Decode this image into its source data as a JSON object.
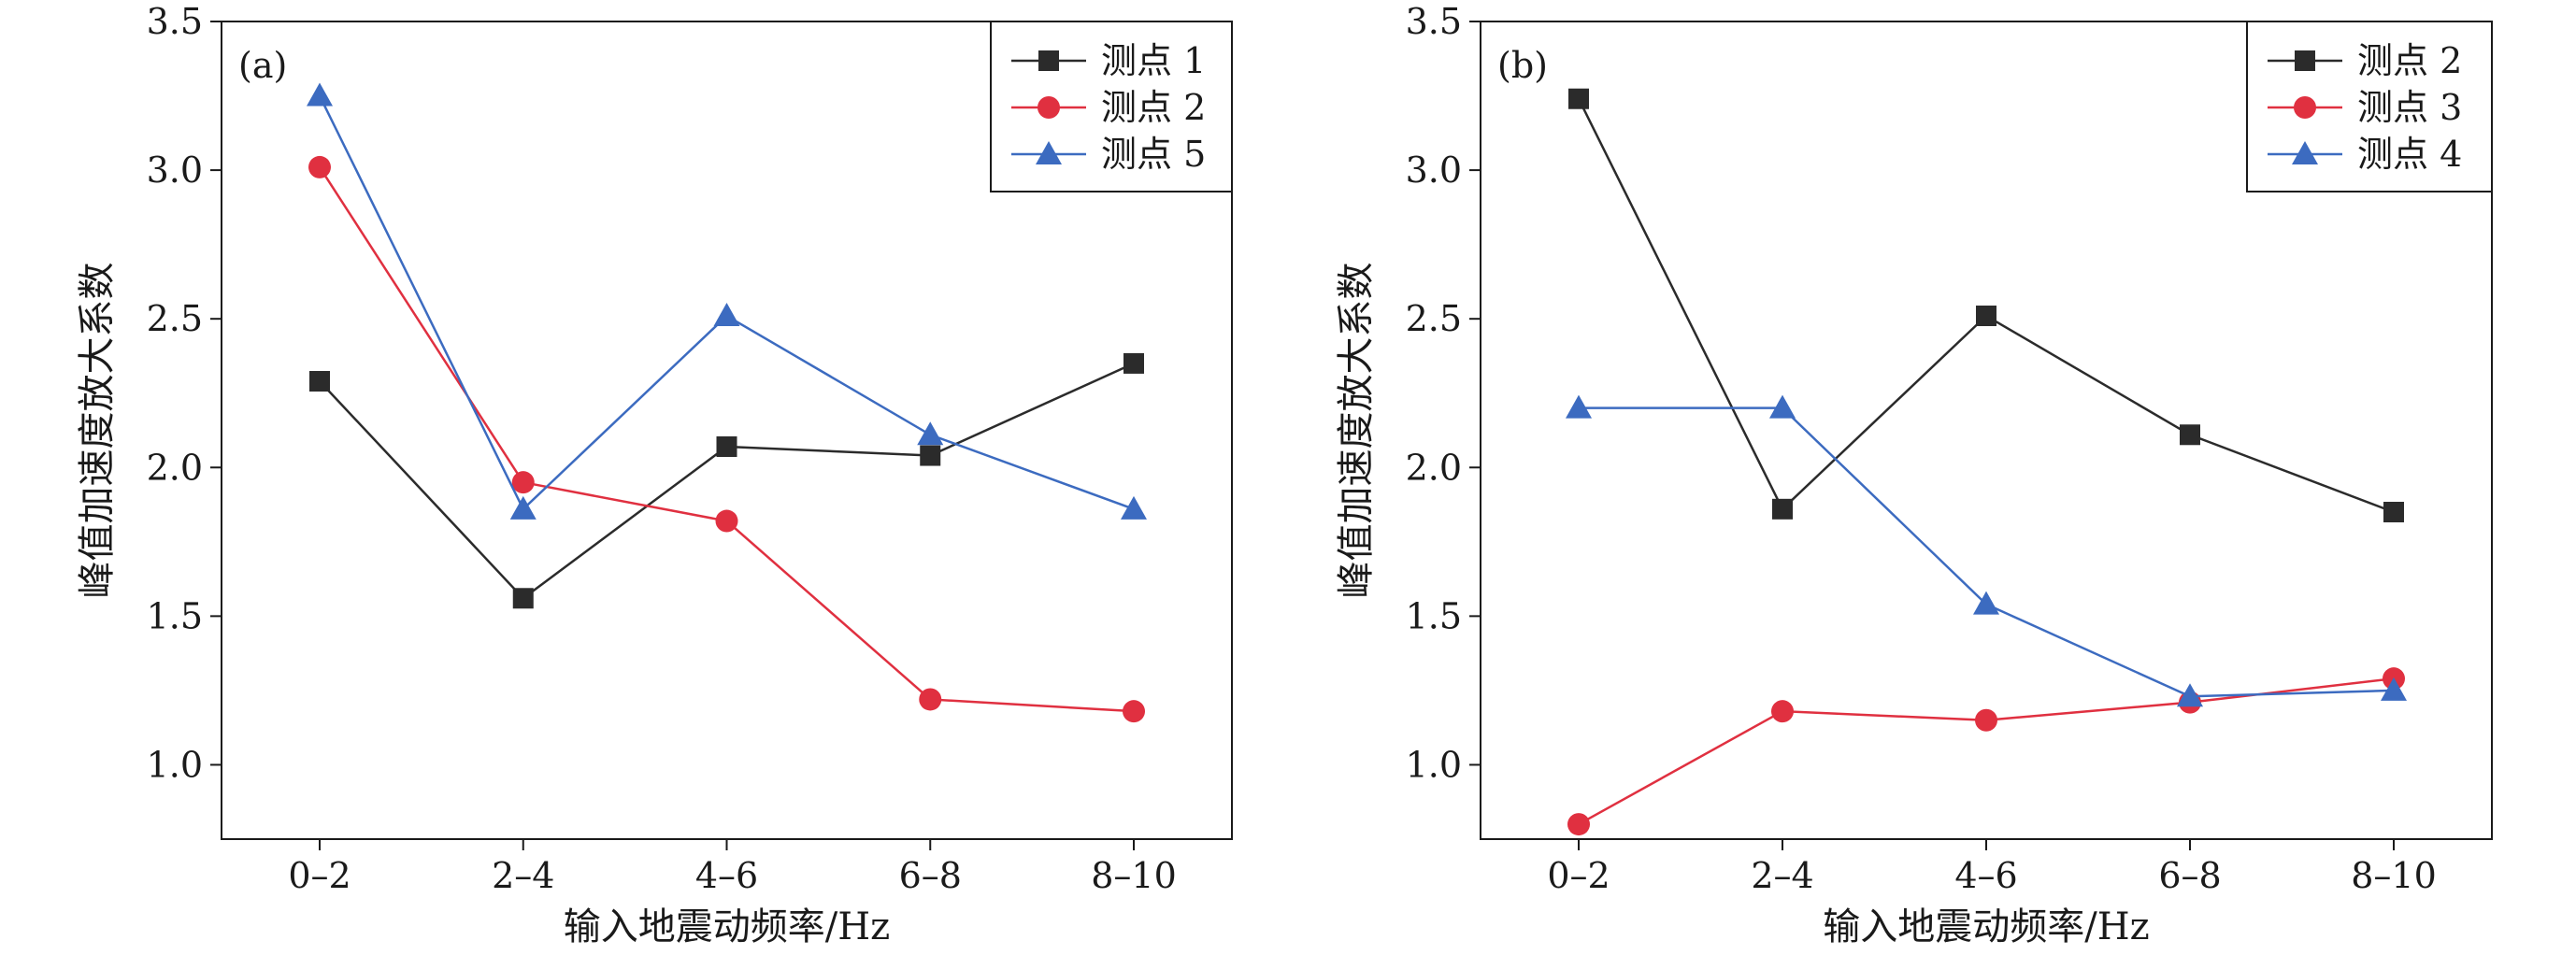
{
  "chart_data": [
    {
      "type": "line",
      "panel_label": "(a)",
      "categories": [
        "0–2",
        "2–4",
        "4–6",
        "6–8",
        "8–10"
      ],
      "xlabel": "输入地震动频率/Hz",
      "ylabel": "峰值加速度放大系数",
      "ylim": [
        0.75,
        3.5
      ],
      "yticks": [
        "1.0",
        "1.5",
        "2.0",
        "2.5",
        "3.0",
        "3.5"
      ],
      "legend_position": "top-right",
      "grid": false,
      "series": [
        {
          "name": "测点 1",
          "marker": "square",
          "color": "#2b2b2b",
          "values": [
            2.29,
            1.56,
            2.07,
            2.04,
            2.35
          ]
        },
        {
          "name": "测点 2",
          "marker": "circle",
          "color": "#e03040",
          "values": [
            3.01,
            1.95,
            1.82,
            1.22,
            1.18
          ]
        },
        {
          "name": "测点 5",
          "marker": "triangle",
          "color": "#3c6bc0",
          "values": [
            3.25,
            1.86,
            2.51,
            2.11,
            1.86
          ]
        }
      ]
    },
    {
      "type": "line",
      "panel_label": "(b)",
      "categories": [
        "0–2",
        "2–4",
        "4–6",
        "6–8",
        "8–10"
      ],
      "xlabel": "输入地震动频率/Hz",
      "ylabel": "峰值加速度放大系数",
      "ylim": [
        0.75,
        3.5
      ],
      "yticks": [
        "1.0",
        "1.5",
        "2.0",
        "2.5",
        "3.0",
        "3.5"
      ],
      "legend_position": "top-right",
      "grid": false,
      "series": [
        {
          "name": "测点 2",
          "marker": "square",
          "color": "#2b2b2b",
          "values": [
            3.24,
            1.86,
            2.51,
            2.11,
            1.85
          ]
        },
        {
          "name": "测点 3",
          "marker": "circle",
          "color": "#e03040",
          "values": [
            0.8,
            1.18,
            1.15,
            1.21,
            1.29
          ]
        },
        {
          "name": "测点 4",
          "marker": "triangle",
          "color": "#3c6bc0",
          "values": [
            2.2,
            2.2,
            1.54,
            1.23,
            1.25
          ]
        }
      ]
    }
  ]
}
